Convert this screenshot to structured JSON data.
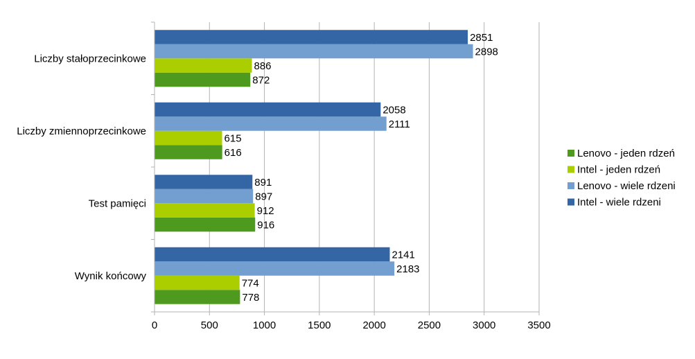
{
  "chart_data": {
    "type": "bar",
    "orientation": "horizontal",
    "categories": [
      "Wynik końcowy",
      "Test pamięci",
      "Liczby zmiennoprzecinkowe",
      "Liczby stałoprzecinkowe"
    ],
    "series": [
      {
        "name": "Lenovo - jeden rdzeń",
        "color": "#4E9A1E",
        "values": [
          778,
          916,
          616,
          872
        ]
      },
      {
        "name": "Intel -  jeden rdzeń",
        "color": "#AACE00",
        "values": [
          774,
          912,
          615,
          886
        ]
      },
      {
        "name": "Lenovo - wiele rdzeni",
        "color": "#729FCF",
        "values": [
          2183,
          897,
          2111,
          2898
        ]
      },
      {
        "name": "Intel - wiele rdzeni",
        "color": "#3465A4",
        "values": [
          2141,
          891,
          2058,
          2851
        ]
      }
    ],
    "xticks": [
      "0",
      "500",
      "1000",
      "1500",
      "2000",
      "2500",
      "3000",
      "3500"
    ],
    "xlim": [
      0,
      3500
    ],
    "grid": true,
    "legend_position": "right",
    "data_labels": true
  }
}
